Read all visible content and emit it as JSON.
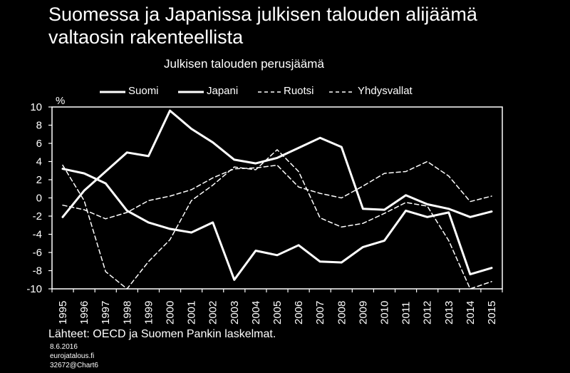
{
  "title_line1": "Suomessa ja Japanissa julkisen talouden alijäämä",
  "title_line2": "valtaosin rakenteellista",
  "chart_data": {
    "type": "line",
    "title": "Julkisen talouden perusjäämä",
    "ylabel": "%",
    "xlabel": "",
    "ylim": [
      -10,
      10
    ],
    "yticks": [
      10,
      8,
      6,
      4,
      2,
      0,
      -2,
      -4,
      -6,
      -8,
      -10
    ],
    "categories": [
      "1995",
      "1996",
      "1997",
      "1998",
      "1999",
      "2000",
      "2001",
      "2002",
      "2003",
      "2004",
      "2005",
      "2006",
      "2007",
      "2008",
      "2009",
      "2010",
      "2011",
      "2012",
      "2013",
      "2014",
      "2015"
    ],
    "series": [
      {
        "name": "Suomi",
        "style": "solid",
        "values": [
          -2.1,
          0.8,
          2.9,
          5.0,
          4.6,
          9.6,
          7.6,
          6.1,
          4.2,
          3.8,
          4.4,
          5.5,
          6.6,
          5.6,
          -1.2,
          -1.3,
          0.3,
          -0.7,
          -1.2,
          -2.1,
          -1.5
        ]
      },
      {
        "name": "Japani",
        "style": "solid",
        "values": [
          3.2,
          2.7,
          1.6,
          -1.4,
          -2.7,
          -3.4,
          -3.8,
          -2.7,
          -9.0,
          -5.8,
          -6.3,
          -5.2,
          -7.0,
          -7.1,
          -5.4,
          -4.7,
          -1.4,
          -2.1,
          -1.6,
          -8.4,
          -7.7
        ]
      },
      {
        "name": "Ruotsi",
        "style": "dashed",
        "values": [
          3.6,
          -0.3,
          -8.1,
          -10.0,
          -7.0,
          -4.6,
          -0.3,
          1.4,
          3.4,
          3.1,
          5.3,
          2.9,
          -2.2,
          -3.2,
          -2.8,
          -1.7,
          -0.5,
          -0.9,
          -4.7,
          -10.0,
          -9.2
        ]
      },
      {
        "name": "Yhdysvallat",
        "style": "dashed",
        "values": [
          -0.8,
          -1.3,
          -2.3,
          -1.6,
          -0.3,
          0.2,
          0.9,
          2.2,
          3.2,
          3.3,
          3.6,
          1.2,
          0.5,
          0.0,
          1.3,
          2.7,
          2.9,
          4.0,
          2.4,
          -0.4,
          0.2
        ]
      }
    ],
    "legend_position": "top"
  },
  "footer": {
    "source": "Lähteet: OECD ja Suomen Pankin laskelmat.",
    "date": "8.6.2016",
    "site": "eurojatalous.fi",
    "code": "32672@Chart6"
  },
  "colors": {
    "background": "#000000",
    "foreground": "#ffffff"
  }
}
